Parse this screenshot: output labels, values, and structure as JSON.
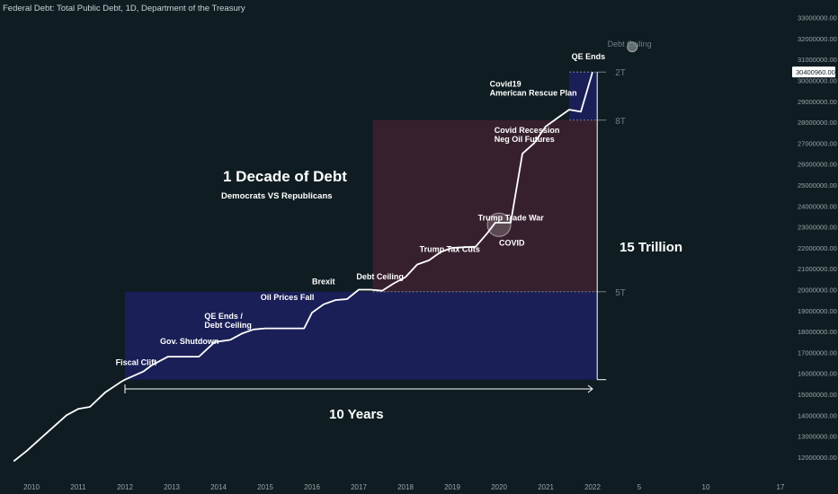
{
  "chart_data": {
    "type": "line",
    "title": "Federal Debt: Total Public Debt, 1D, Department of the Treasury",
    "x_ticks": [
      "2010",
      "2011",
      "2012",
      "2013",
      "2014",
      "2015",
      "2016",
      "2017",
      "2018",
      "2019",
      "2020",
      "2021",
      "2022",
      "5",
      "10",
      "17"
    ],
    "y_ticks": [
      12000000,
      13000000,
      14000000,
      15000000,
      16000000,
      17000000,
      18000000,
      19000000,
      20000000,
      21000000,
      22000000,
      23000000,
      24000000,
      25000000,
      26000000,
      27000000,
      28000000,
      29000000,
      30000000,
      31000000,
      32000000,
      33000000
    ],
    "y_tick_labels": [
      "12000000.00",
      "13000000.00",
      "14000000.00",
      "15000000.00",
      "16000000.00",
      "17000000.00",
      "18000000.00",
      "19000000.00",
      "20000000.00",
      "21000000.00",
      "22000000.00",
      "23000000.00",
      "24000000.00",
      "25000000.00",
      "26000000.00",
      "27000000.00",
      "28000000.00",
      "29000000.00",
      "30000000.00",
      "31000000.00",
      "32000000.00",
      "33000000.00"
    ],
    "ylim": [
      11500000,
      33200000
    ],
    "last_value_label": "30400960.00",
    "series": [
      {
        "name": "Total Public Debt",
        "color": "#ffffff",
        "x": [
          2009.62,
          2009.9,
          2010.25,
          2010.5,
          2010.75,
          2011.0,
          2011.25,
          2011.58,
          2011.92,
          2012.0,
          2012.4,
          2012.58,
          2012.92,
          2013.0,
          2013.58,
          2013.92,
          2014.25,
          2014.5,
          2014.75,
          2015.0,
          2015.5,
          2015.83,
          2016.0,
          2016.25,
          2016.5,
          2016.75,
          2017.0,
          2017.25,
          2017.5,
          2017.75,
          2018.0,
          2018.25,
          2018.5,
          2018.75,
          2019.0,
          2019.5,
          2019.75,
          2019.92,
          2020.25,
          2020.5,
          2020.75,
          2021.0,
          2021.25,
          2021.5,
          2021.75,
          2022.0
        ],
        "y": [
          11800000,
          12300000,
          13000000,
          13500000,
          14000000,
          14300000,
          14400000,
          15100000,
          15600000,
          15700000,
          16100000,
          16400000,
          16800000,
          16800000,
          16800000,
          17500000,
          17600000,
          17900000,
          18100000,
          18150000,
          18150000,
          18150000,
          18900000,
          19300000,
          19500000,
          19550000,
          20000000,
          20000000,
          19950000,
          20300000,
          20600000,
          21200000,
          21400000,
          21800000,
          22000000,
          22050000,
          22700000,
          23200000,
          23200000,
          26500000,
          27000000,
          27800000,
          28200000,
          28600000,
          28500000,
          30400000
        ]
      }
    ],
    "shaded_bands": [
      {
        "from_year": 2012.0,
        "to_year": 2022.1,
        "y_from": 15700000,
        "y_to": 19900000,
        "color": "#1c2060"
      },
      {
        "from_year": 2017.3,
        "to_year": 2022.1,
        "y_from": 19900000,
        "y_to": 28100000,
        "color": "#3e2130"
      },
      {
        "from_year": 2021.5,
        "to_year": 2022.1,
        "y_from": 28100000,
        "y_to": 30400000,
        "color": "#1c2060"
      }
    ],
    "level_lines": [
      {
        "label": "5T",
        "value": 19900000
      },
      {
        "label": "8T",
        "value": 28100000
      },
      {
        "label": "2T",
        "value": 30400000
      }
    ],
    "headline": {
      "title": "1 Decade of Debt",
      "subtitle": "Democrats VS Republicans"
    },
    "span_annotations": {
      "horizontal": "10 Years",
      "vertical": "15 Trillion"
    },
    "event_annotations": [
      {
        "text": "Fiscal Clift",
        "year": 2011.8,
        "value": 16400000
      },
      {
        "text": "Gov. Shutdown",
        "year": 2012.75,
        "value": 17400000
      },
      {
        "text": "QE Ends /\nDebt Ceiling",
        "year": 2013.7,
        "value": 18600000
      },
      {
        "text": "Oil Prices Fall",
        "year": 2014.9,
        "value": 19500000
      },
      {
        "text": "Brexit",
        "year": 2016.0,
        "value": 20250000
      },
      {
        "text": "Debt Ceiling",
        "year": 2016.95,
        "value": 20500000
      },
      {
        "text": "Trump Tax Cuts",
        "year": 2018.3,
        "value": 21800000
      },
      {
        "text": "Trump Trade War",
        "year": 2019.55,
        "value": 23300000
      },
      {
        "text": "COVID",
        "year": 2020.0,
        "value": 22100000
      },
      {
        "text": "Covid Recession\nNeg Oil Futures",
        "year": 2019.9,
        "value": 27500000
      },
      {
        "text": "Covid19\nAmerican Rescue Plan",
        "year": 2019.8,
        "value": 29700000
      },
      {
        "text": "QE Ends",
        "year": 2021.55,
        "value": 31000000
      },
      {
        "text": "Debt Ceiling",
        "year": 2022.32,
        "value": 31600000
      }
    ],
    "marker_circles": [
      {
        "year": 2020.0,
        "value": 23100000
      },
      {
        "year": 2022.85,
        "value": 31600000
      }
    ],
    "grid": false,
    "colors": {
      "background": "#0f1d22",
      "line": "#ffffff",
      "muted": "#6f7f84",
      "axis_text": "#9aa4a8"
    }
  }
}
